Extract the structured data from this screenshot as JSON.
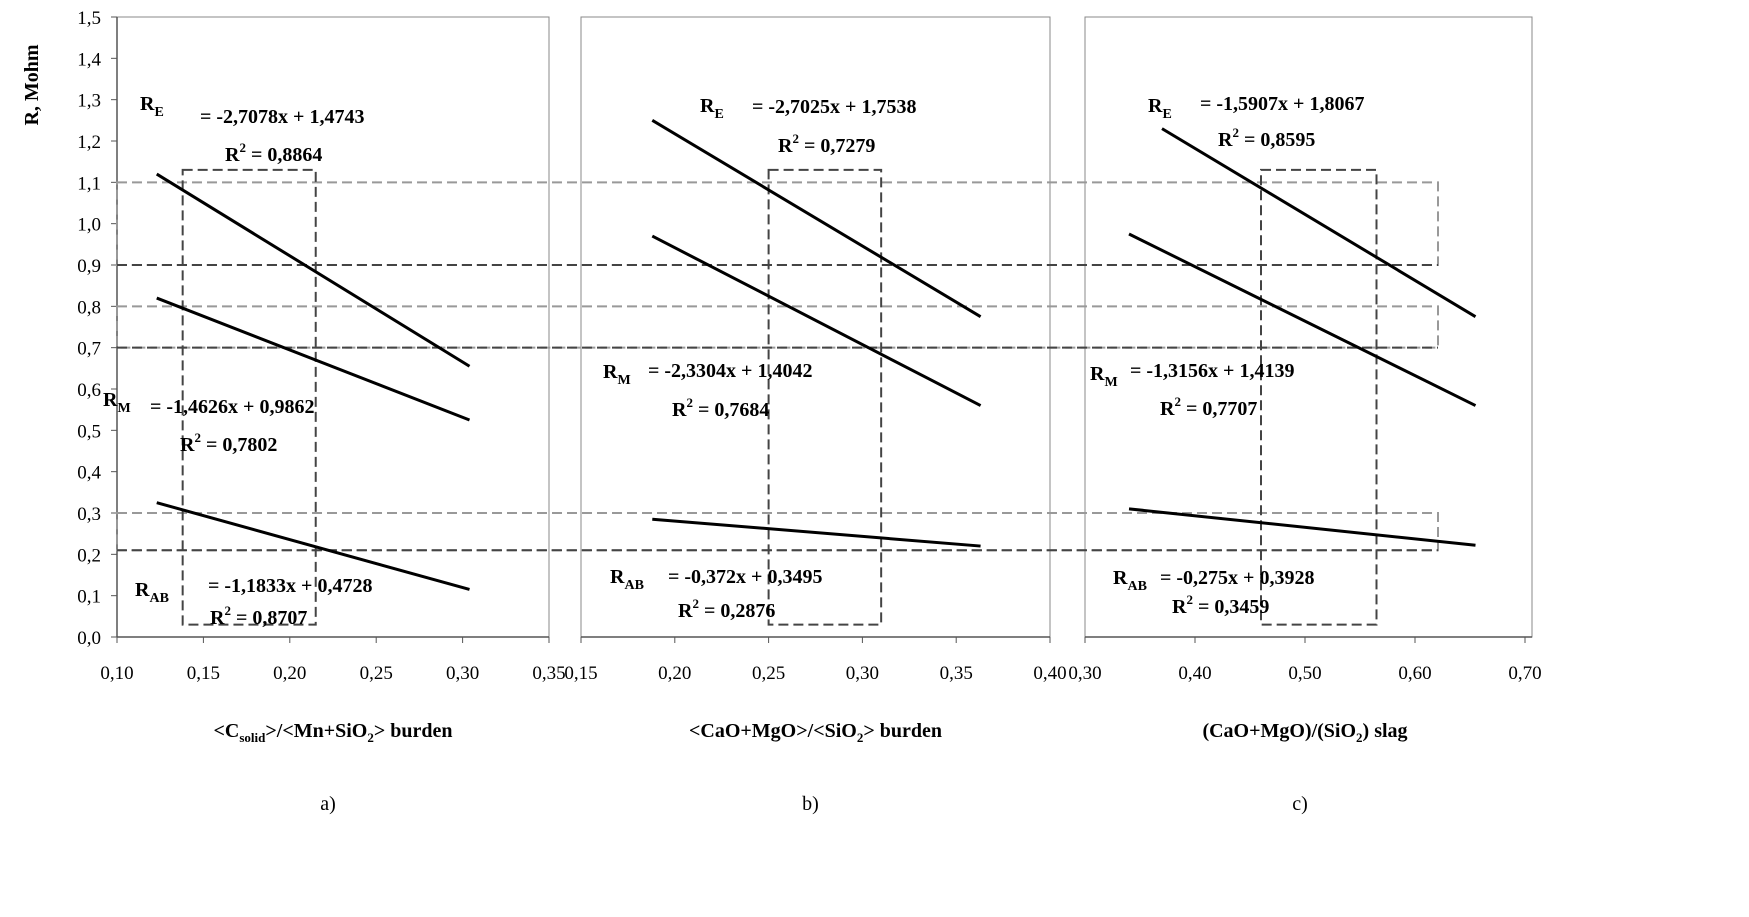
{
  "chart_data": {
    "type": "line",
    "ylabel": "R, Mohm",
    "ylim": [
      0,
      1.5
    ],
    "yticks": [
      {
        "value": 0,
        "label": "0,0"
      },
      {
        "value": 0.1,
        "label": "0,1"
      },
      {
        "value": 0.2,
        "label": "0,2"
      },
      {
        "value": 0.3,
        "label": "0,3"
      },
      {
        "value": 0.4,
        "label": "0,4"
      },
      {
        "value": 0.5,
        "label": "0,5"
      },
      {
        "value": 0.6,
        "label": "0,6"
      },
      {
        "value": 0.7,
        "label": "0,7"
      },
      {
        "value": 0.8,
        "label": "0,8"
      },
      {
        "value": 0.9,
        "label": "0,9"
      },
      {
        "value": 1.0,
        "label": "1,0"
      },
      {
        "value": 1.1,
        "label": "1,1"
      },
      {
        "value": 1.2,
        "label": "1,2"
      },
      {
        "value": 1.3,
        "label": "1,3"
      },
      {
        "value": 1.4,
        "label": "1,4"
      },
      {
        "value": 1.5,
        "label": "1,5"
      }
    ],
    "ybands": [
      [
        0.9,
        1.1
      ],
      [
        0.7,
        0.8
      ],
      [
        0.21,
        0.3
      ]
    ],
    "r2_symbol": "R",
    "r2_sup": "2",
    "panels": [
      {
        "caption": "a)",
        "xlabel_parts": [
          "<C",
          "solid",
          ">/<Mn+SiO",
          "2",
          "> burden"
        ],
        "xlim": [
          0.1,
          0.35
        ],
        "xticks": [
          {
            "value": 0.1,
            "label": "0,10"
          },
          {
            "value": 0.15,
            "label": "0,15"
          },
          {
            "value": 0.2,
            "label": "0,20"
          },
          {
            "value": 0.25,
            "label": "0,25"
          },
          {
            "value": 0.3,
            "label": "0,30"
          },
          {
            "value": 0.35,
            "label": "0,35"
          }
        ],
        "xband": [
          0.138,
          0.215
        ],
        "xband_ylim": [
          0.03,
          1.13
        ],
        "series": [
          {
            "name": "R",
            "name_sub": "E",
            "color": "#000000",
            "x": [
              0.123,
              0.304
            ],
            "values": [
              1.12,
              0.655
            ],
            "equation": "= -2,7078x + 1,4743",
            "r_squared": " = 0,8864"
          },
          {
            "name": "R",
            "name_sub": "M",
            "color": "#000000",
            "x": [
              0.123,
              0.304
            ],
            "values": [
              0.82,
              0.525
            ],
            "equation": "= -1,4626x + 0,9862",
            "r_squared": " = 0,7802"
          },
          {
            "name": "R",
            "name_sub": "AB",
            "color": "#000000",
            "x": [
              0.123,
              0.304
            ],
            "values": [
              0.325,
              0.115
            ],
            "equation": "= -1,1833x + 0,4728",
            "r_squared": " = 0,8707"
          }
        ]
      },
      {
        "caption": "b)",
        "xlabel_parts": [
          "<CaO+MgO>/<SiO",
          "2",
          "> burden"
        ],
        "xlim": [
          0.15,
          0.4
        ],
        "xticks": [
          {
            "value": 0.15,
            "label": "0,15"
          },
          {
            "value": 0.2,
            "label": "0,20"
          },
          {
            "value": 0.25,
            "label": "0,25"
          },
          {
            "value": 0.3,
            "label": "0,30"
          },
          {
            "value": 0.35,
            "label": "0,35"
          },
          {
            "value": 0.4,
            "label": "0,40"
          }
        ],
        "xband": [
          0.25,
          0.31
        ],
        "xband_ylim": [
          0.03,
          1.13
        ],
        "series": [
          {
            "name": "R",
            "name_sub": "E",
            "color": "#000000",
            "x": [
              0.188,
              0.363
            ],
            "values": [
              1.25,
              0.775
            ],
            "equation": "= -2,7025x + 1,7538",
            "r_squared": " = 0,7279"
          },
          {
            "name": "R",
            "name_sub": "M",
            "color": "#000000",
            "x": [
              0.188,
              0.363
            ],
            "values": [
              0.97,
              0.56
            ],
            "equation": "= -2,3304x + 1,4042",
            "r_squared": " = 0,7684"
          },
          {
            "name": "R",
            "name_sub": "AB",
            "color": "#000000",
            "x": [
              0.188,
              0.363
            ],
            "values": [
              0.285,
              0.22
            ],
            "equation": "= -0,372x + 0,3495",
            "r_squared": " = 0,2876"
          }
        ]
      },
      {
        "caption": "c)",
        "xlabel_parts": [
          "(CaO+MgO)/(SiO",
          "2",
          ") slag"
        ],
        "xlim": [
          0.3,
          0.7
        ],
        "xticks": [
          {
            "value": 0.3,
            "label": "0,30"
          },
          {
            "value": 0.4,
            "label": "0,40"
          },
          {
            "value": 0.5,
            "label": "0,50"
          },
          {
            "value": 0.6,
            "label": "0,60"
          },
          {
            "value": 0.7,
            "label": "0,70"
          }
        ],
        "xband": [
          0.46,
          0.565
        ],
        "xband_ylim": [
          0.03,
          1.13
        ],
        "series": [
          {
            "name": "R",
            "name_sub": "E",
            "color": "#000000",
            "x": [
              0.37,
              0.655
            ],
            "values": [
              1.23,
              0.775
            ],
            "equation": "= -1,5907x + 1,8067",
            "r_squared": " = 0,8595"
          },
          {
            "name": "R",
            "name_sub": "M",
            "color": "#000000",
            "x": [
              0.34,
              0.655
            ],
            "values": [
              0.975,
              0.56
            ],
            "equation": "= -1,3156x + 1,4139",
            "r_squared": " = 0,7707"
          },
          {
            "name": "R",
            "name_sub": "AB",
            "color": "#000000",
            "x": [
              0.34,
              0.655
            ],
            "values": [
              0.31,
              0.222
            ],
            "equation": "= -0,275x + 0,3928",
            "r_squared": " = 0,3459"
          }
        ]
      }
    ]
  }
}
